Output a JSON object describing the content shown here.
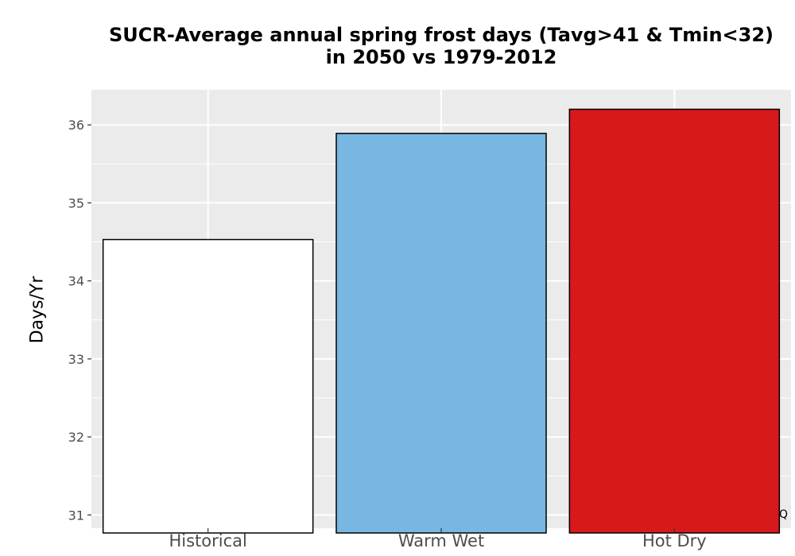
{
  "chart_data": {
    "type": "bar",
    "title": "SUCR-Average annual spring frost days (Tavg>41 & Tmin<32)\nin 2050 vs 1979-2012",
    "xlabel": "",
    "ylabel": "Days/Yr",
    "categories": [
      "Historical",
      "Warm Wet",
      "Hot Dry"
    ],
    "values": [
      34.53,
      35.89,
      36.2
    ],
    "colors": [
      "#ffffff",
      "#78b7e1",
      "#d7191c"
    ],
    "ylim": [
      30.83,
      36.45
    ],
    "yticks": [
      31,
      32,
      33,
      34,
      35,
      36
    ],
    "ytick_labels": [
      "31",
      "32",
      "33",
      "34",
      "35",
      "36"
    ],
    "grid": true,
    "panel_background": "#ebebeb",
    "bar_outline": "#000000",
    "legend": "none"
  },
  "corner_note": "Q"
}
